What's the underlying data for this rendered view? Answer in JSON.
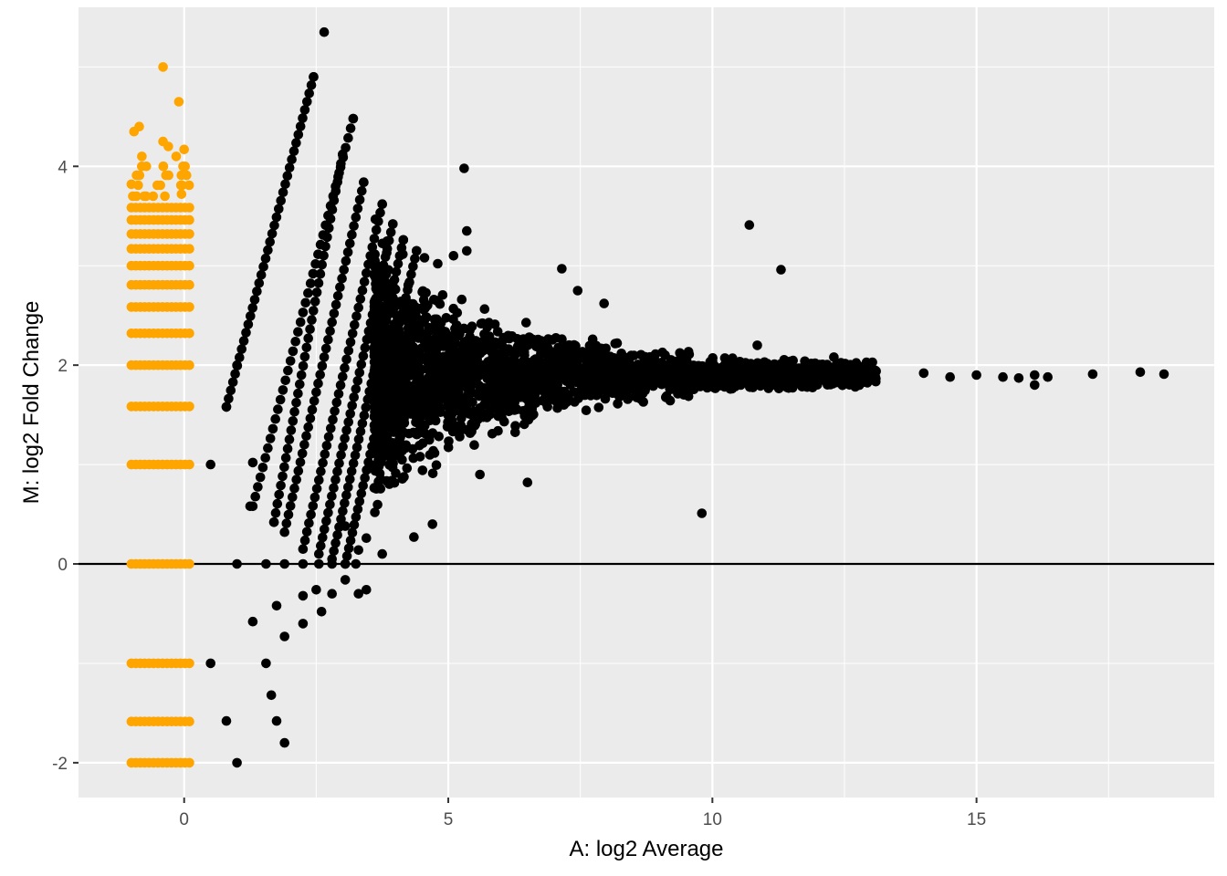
{
  "chart_data": {
    "type": "scatter",
    "title": "",
    "xlabel": "A: log2 Average",
    "ylabel": "M: log2 Fold Change",
    "xlim": [
      -2.0,
      19.5
    ],
    "ylim": [
      -2.35,
      5.6
    ],
    "x_ticks": [
      0,
      5,
      10,
      15
    ],
    "x_tick_labels": [
      "0",
      "5",
      "10",
      "15"
    ],
    "y_ticks": [
      -2,
      0,
      2,
      4
    ],
    "y_tick_labels": [
      "-2",
      "0",
      "2",
      "4"
    ],
    "grid": true,
    "reference_line": {
      "y": 0,
      "color": "#000000"
    },
    "series": [
      {
        "color": "#FFA500",
        "points": [
          [
            -0.4,
            5.0
          ],
          [
            -0.1,
            4.65
          ],
          [
            -0.85,
            4.4
          ],
          [
            -0.95,
            4.35
          ],
          [
            -0.4,
            4.25
          ],
          [
            -0.3,
            4.2
          ],
          [
            0.0,
            4.17
          ],
          [
            -0.15,
            4.1
          ],
          [
            -0.8,
            4.1
          ],
          [
            -1.0,
            3.82
          ],
          [
            -0.05,
            3.72
          ]
        ]
      },
      {
        "color": "#000000",
        "points": [
          [
            2.65,
            5.35
          ],
          [
            2.45,
            4.9
          ],
          [
            3.2,
            4.48
          ],
          [
            3.0,
            4.12
          ],
          [
            3.4,
            3.84
          ],
          [
            3.75,
            3.62
          ],
          [
            3.95,
            3.42
          ],
          [
            4.15,
            3.26
          ],
          [
            4.4,
            3.15
          ],
          [
            4.55,
            3.08
          ],
          [
            4.8,
            3.02
          ],
          [
            5.1,
            3.1
          ],
          [
            5.35,
            3.15
          ],
          [
            5.3,
            3.98
          ],
          [
            5.35,
            3.35
          ],
          [
            7.15,
            2.97
          ],
          [
            7.45,
            2.75
          ],
          [
            7.95,
            2.62
          ],
          [
            10.7,
            3.41
          ],
          [
            11.3,
            2.96
          ],
          [
            10.85,
            2.2
          ],
          [
            12.3,
            2.08
          ],
          [
            13.1,
            1.94
          ],
          [
            14.0,
            1.92
          ],
          [
            14.5,
            1.88
          ],
          [
            15.0,
            1.9
          ],
          [
            15.5,
            1.88
          ],
          [
            15.8,
            1.87
          ],
          [
            16.1,
            1.9
          ],
          [
            16.1,
            1.8
          ],
          [
            16.35,
            1.88
          ],
          [
            17.2,
            1.91
          ],
          [
            18.1,
            1.93
          ],
          [
            18.55,
            1.91
          ],
          [
            9.8,
            0.51
          ],
          [
            6.5,
            0.82
          ],
          [
            5.6,
            0.9
          ],
          [
            4.7,
            0.4
          ],
          [
            4.35,
            0.27
          ],
          [
            3.75,
            0.1
          ],
          [
            3.45,
            0.26
          ],
          [
            3.3,
            0.14
          ],
          [
            3.05,
            0.38
          ],
          [
            1.0,
            2.0
          ],
          [
            1.3,
            1.02
          ],
          [
            0.8,
            1.58
          ],
          [
            0.5,
            1.0
          ],
          [
            1.25,
            0.58
          ],
          [
            1.7,
            0.42
          ],
          [
            0.5,
            -1.0
          ],
          [
            0.8,
            -1.58
          ],
          [
            1.0,
            -2.0
          ],
          [
            1.3,
            -0.58
          ],
          [
            1.55,
            -1.0
          ],
          [
            1.65,
            -1.32
          ],
          [
            1.75,
            -1.58
          ],
          [
            1.9,
            -1.8
          ],
          [
            1.75,
            -0.42
          ],
          [
            1.9,
            -0.73
          ],
          [
            2.25,
            -0.32
          ],
          [
            2.25,
            -0.6
          ],
          [
            2.5,
            -0.26
          ],
          [
            2.6,
            -0.48
          ],
          [
            2.8,
            -0.3
          ],
          [
            3.05,
            -0.16
          ],
          [
            3.3,
            -0.3
          ],
          [
            3.45,
            -0.26
          ],
          [
            1.0,
            0.0
          ],
          [
            1.55,
            0.0
          ],
          [
            1.9,
            0.0
          ],
          [
            2.25,
            0.0
          ],
          [
            2.55,
            0.0
          ],
          [
            2.8,
            0.0
          ],
          [
            3.05,
            0.0
          ],
          [
            3.25,
            0.0
          ]
        ]
      }
    ]
  }
}
